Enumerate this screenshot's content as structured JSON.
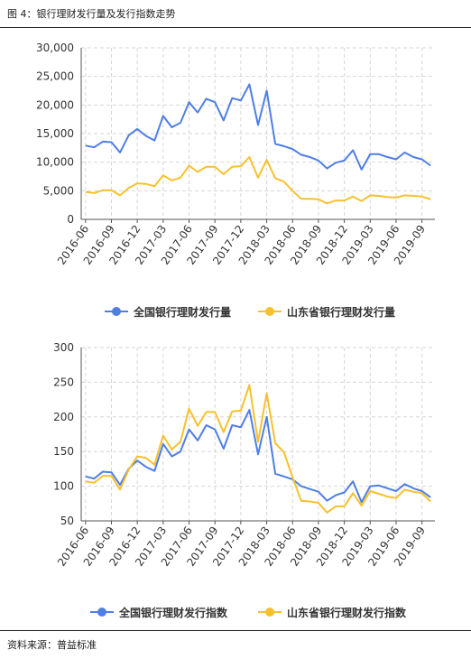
{
  "figure": {
    "title": "图 4：银行理财发行量及发行指数走势",
    "source": "资料来源：普益标准"
  },
  "colors": {
    "blue": "#4e7ee6",
    "yellow": "#f7c12c"
  },
  "chart_data": [
    {
      "type": "line",
      "title": "",
      "xlabel": "",
      "ylabel": "",
      "ylim": [
        0,
        30000
      ],
      "yticks": [
        "30,000",
        "25,000",
        "20,000",
        "15,000",
        "10,000",
        "5,000",
        "0"
      ],
      "ytick_values": [
        30000,
        25000,
        20000,
        15000,
        10000,
        5000,
        0
      ],
      "xticks": [
        "2016-06",
        "2016-09",
        "2016-12",
        "2017-03",
        "2017-06",
        "2017-09",
        "2017-12",
        "2018-03",
        "2018-06",
        "2018-09",
        "2018-12",
        "2019-03",
        "2019-06",
        "2019-09"
      ],
      "grid": true,
      "legend_position": "bottom",
      "series": [
        {
          "name": "全国银行理财发行量",
          "color": "#4e7ee6",
          "values": [
            12900,
            12600,
            13600,
            13500,
            11700,
            14700,
            15800,
            14600,
            13800,
            18100,
            16100,
            16900,
            20500,
            18700,
            21100,
            20500,
            17300,
            21200,
            20800,
            23600,
            16500,
            22500,
            13200,
            12800,
            12300,
            11300,
            10900,
            10300,
            8900,
            9900,
            10300,
            12100,
            8700,
            11400,
            11400,
            10900,
            10500,
            11700,
            10900,
            10500,
            9400
          ]
        },
        {
          "name": "山东省银行理财发行量",
          "color": "#f7c12c",
          "values": [
            4800,
            4600,
            5100,
            5100,
            4200,
            5500,
            6300,
            6200,
            5800,
            7700,
            6800,
            7300,
            9400,
            8300,
            9200,
            9200,
            7900,
            9200,
            9300,
            10900,
            7300,
            10400,
            7200,
            6600,
            5000,
            3600,
            3600,
            3500,
            2800,
            3300,
            3300,
            4000,
            3200,
            4200,
            4100,
            3900,
            3800,
            4200,
            4100,
            4000,
            3500
          ]
        }
      ]
    },
    {
      "type": "line",
      "title": "",
      "xlabel": "",
      "ylabel": "",
      "ylim": [
        50,
        300
      ],
      "yticks": [
        "300",
        "250",
        "200",
        "150",
        "100",
        "50"
      ],
      "ytick_values": [
        300,
        250,
        200,
        150,
        100,
        50
      ],
      "xticks": [
        "2016-06",
        "2016-09",
        "2016-12",
        "2017-03",
        "2017-06",
        "2017-09",
        "2017-12",
        "2018-03",
        "2018-06",
        "2018-09",
        "2018-12",
        "2019-03",
        "2019-06",
        "2019-09"
      ],
      "grid": true,
      "legend_position": "bottom",
      "series": [
        {
          "name": "全国银行理财发行指数",
          "color": "#4e7ee6",
          "values": [
            114,
            111,
            121,
            120,
            102,
            125,
            137,
            128,
            122,
            161,
            143,
            150,
            182,
            166,
            188,
            182,
            154,
            188,
            185,
            210,
            146,
            200,
            118,
            114,
            110,
            100,
            96,
            92,
            79,
            87,
            91,
            107,
            77,
            100,
            101,
            97,
            93,
            103,
            97,
            93,
            84
          ]
        },
        {
          "name": "山东省银行理财发行指数",
          "color": "#f7c12c",
          "values": [
            107,
            105,
            115,
            115,
            95,
            124,
            143,
            141,
            131,
            173,
            153,
            164,
            212,
            187,
            207,
            207,
            178,
            208,
            209,
            246,
            164,
            234,
            162,
            149,
            113,
            79,
            78,
            76,
            62,
            71,
            71,
            90,
            72,
            93,
            89,
            85,
            83,
            95,
            92,
            90,
            78
          ]
        }
      ]
    }
  ]
}
